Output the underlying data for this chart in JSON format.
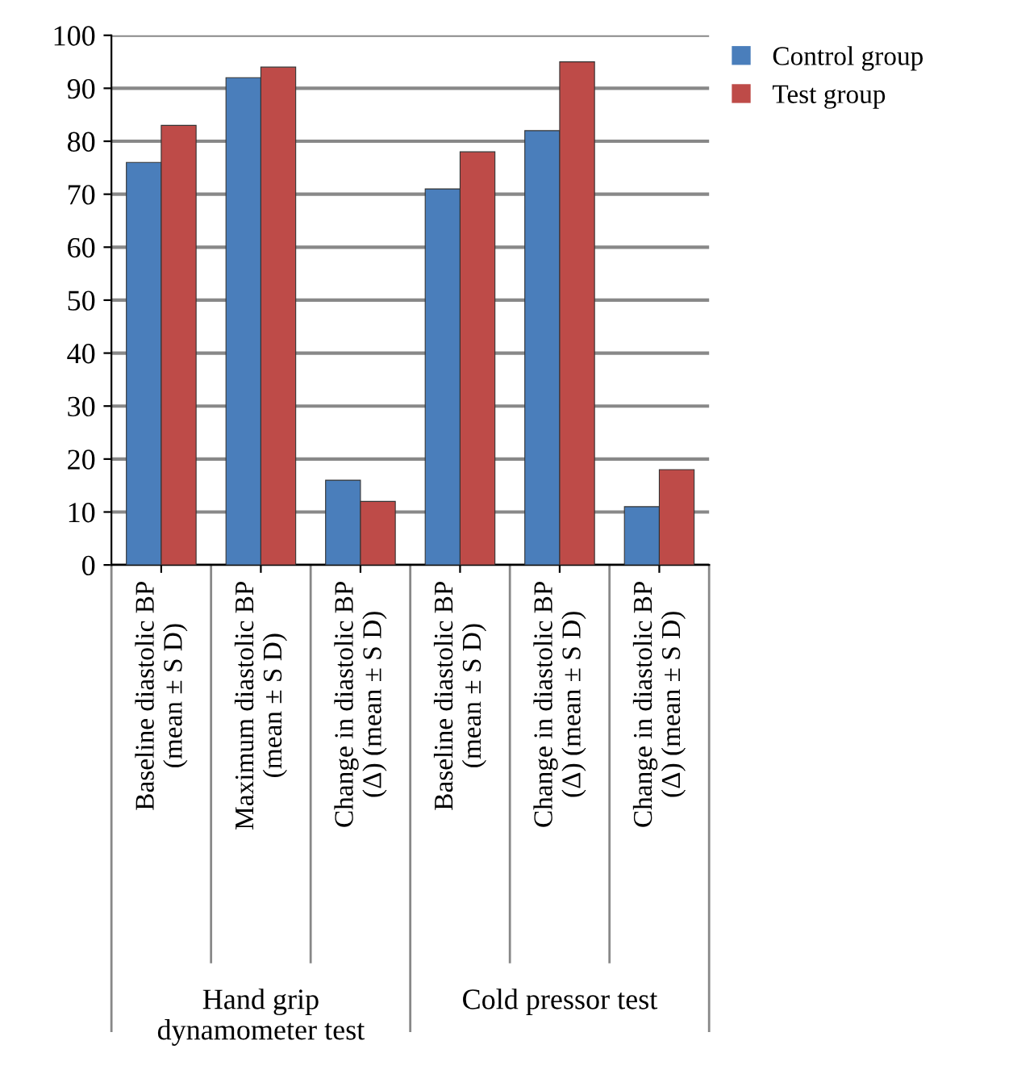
{
  "chart_data": {
    "type": "bar",
    "categories": [
      "Baseline diastolic BP\n(mean ± S D)",
      "Maximum diastolic BP\n(mean ± S D)",
      "Change in diastolic BP\n(Δ) (mean ± S D)",
      "Baseline diastolic BP\n(mean ± S D)",
      "Change in diastolic BP\n(Δ) (mean ± S D)",
      "Change in diastolic BP\n(Δ) (mean ± S D)"
    ],
    "series": [
      {
        "name": "Control group",
        "color": "#4a7ebb",
        "values": [
          76,
          92,
          16,
          71,
          82,
          11
        ]
      },
      {
        "name": "Test group",
        "color": "#be4b48",
        "values": [
          83,
          94,
          12,
          78,
          95,
          18
        ]
      }
    ],
    "ylim": [
      0,
      100
    ],
    "yticks": [
      0,
      10,
      20,
      30,
      40,
      50,
      60,
      70,
      80,
      90,
      100
    ],
    "grid": "y",
    "legend": "top right",
    "annotations": [
      "Hand grip\ndynamometer test",
      "Cold pressor test"
    ]
  }
}
